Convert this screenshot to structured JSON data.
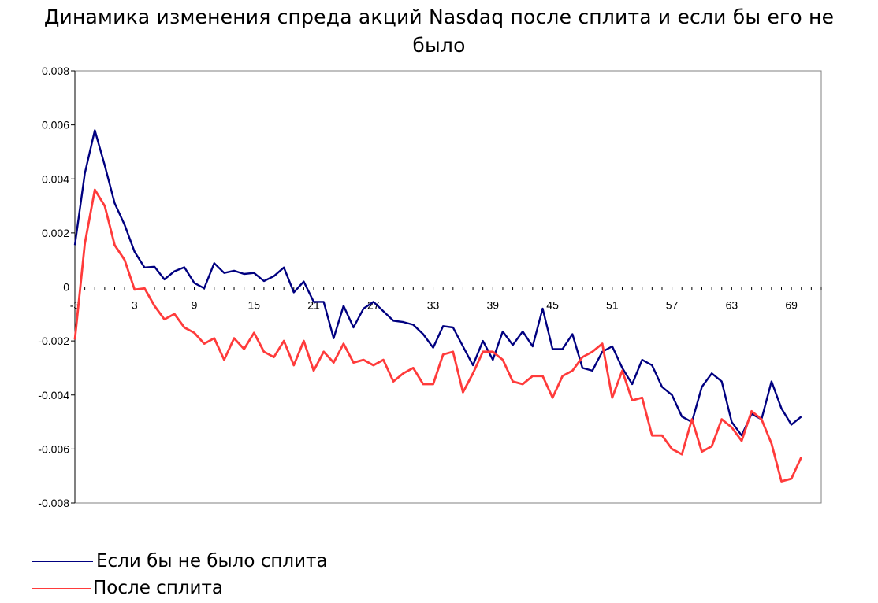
{
  "chart_data": {
    "type": "line",
    "title": "Динамика изменения спреда акций Nasdaq после сплита и если бы его не было",
    "title_lines": [
      "Динамика изменения спреда акций Nasdaq после сплита и если бы его не",
      "было"
    ],
    "xlabel": "",
    "ylabel": "",
    "x_start": -3,
    "xlim": [
      -3,
      72
    ],
    "ylim": [
      -0.008,
      0.008
    ],
    "x_tick_labels": [
      "-3",
      "3",
      "9",
      "15",
      "21",
      "27",
      "33",
      "39",
      "45",
      "51",
      "57",
      "63",
      "69"
    ],
    "y_tick_labels": [
      "0.008",
      "0.006",
      "0.004",
      "0.002",
      "0",
      "-0.002",
      "-0.004",
      "-0.006",
      "-0.008"
    ],
    "grid": false,
    "legend_position": "bottom-left",
    "series": [
      {
        "name": "Если бы не было сплита",
        "color": "#000080",
        "values": [
          0.00155,
          0.0042,
          0.0058,
          0.0045,
          0.0031,
          0.0023,
          0.0013,
          0.00072,
          0.00075,
          0.00028,
          0.00058,
          0.00073,
          0.00015,
          -5e-05,
          0.00088,
          0.00052,
          0.0006,
          0.00048,
          0.00052,
          0.00022,
          0.0004,
          0.00072,
          -0.0002,
          0.0002,
          -0.00055,
          -0.00055,
          -0.0019,
          -0.0007,
          -0.0015,
          -0.0008,
          -0.00055,
          -0.0009,
          -0.00125,
          -0.0013,
          -0.0014,
          -0.00175,
          -0.00225,
          -0.00145,
          -0.0015,
          -0.0022,
          -0.0029,
          -0.002,
          -0.0027,
          -0.00165,
          -0.00215,
          -0.00165,
          -0.0022,
          -0.0008,
          -0.0023,
          -0.0023,
          -0.00175,
          -0.003,
          -0.0031,
          -0.0024,
          -0.0022,
          -0.003,
          -0.0036,
          -0.0027,
          -0.0029,
          -0.0037,
          -0.004,
          -0.0048,
          -0.005,
          -0.0037,
          -0.0032,
          -0.0035,
          -0.005,
          -0.0055,
          -0.0047,
          -0.0049,
          -0.0035,
          -0.0045,
          -0.0051,
          -0.0048
        ]
      },
      {
        "name": "После сплита",
        "color": "#ff3b3b",
        "values": [
          -0.00195,
          0.0016,
          0.0036,
          0.003,
          0.00155,
          0.001,
          -0.0001,
          -5e-05,
          -0.0007,
          -0.0012,
          -0.001,
          -0.0015,
          -0.0017,
          -0.0021,
          -0.0019,
          -0.0027,
          -0.0019,
          -0.0023,
          -0.0017,
          -0.0024,
          -0.0026,
          -0.002,
          -0.0029,
          -0.002,
          -0.0031,
          -0.0024,
          -0.0028,
          -0.0021,
          -0.0028,
          -0.0027,
          -0.0029,
          -0.0027,
          -0.0035,
          -0.0032,
          -0.003,
          -0.0036,
          -0.0036,
          -0.0025,
          -0.0024,
          -0.0039,
          -0.0032,
          -0.0024,
          -0.0024,
          -0.0027,
          -0.0035,
          -0.0036,
          -0.0033,
          -0.0033,
          -0.0041,
          -0.0033,
          -0.0031,
          -0.0026,
          -0.0024,
          -0.0021,
          -0.0041,
          -0.0031,
          -0.0042,
          -0.0041,
          -0.0055,
          -0.0055,
          -0.006,
          -0.0062,
          -0.0049,
          -0.0061,
          -0.0059,
          -0.0049,
          -0.0052,
          -0.0057,
          -0.0046,
          -0.0049,
          -0.0058,
          -0.0072,
          -0.0071,
          -0.0063
        ]
      }
    ]
  }
}
